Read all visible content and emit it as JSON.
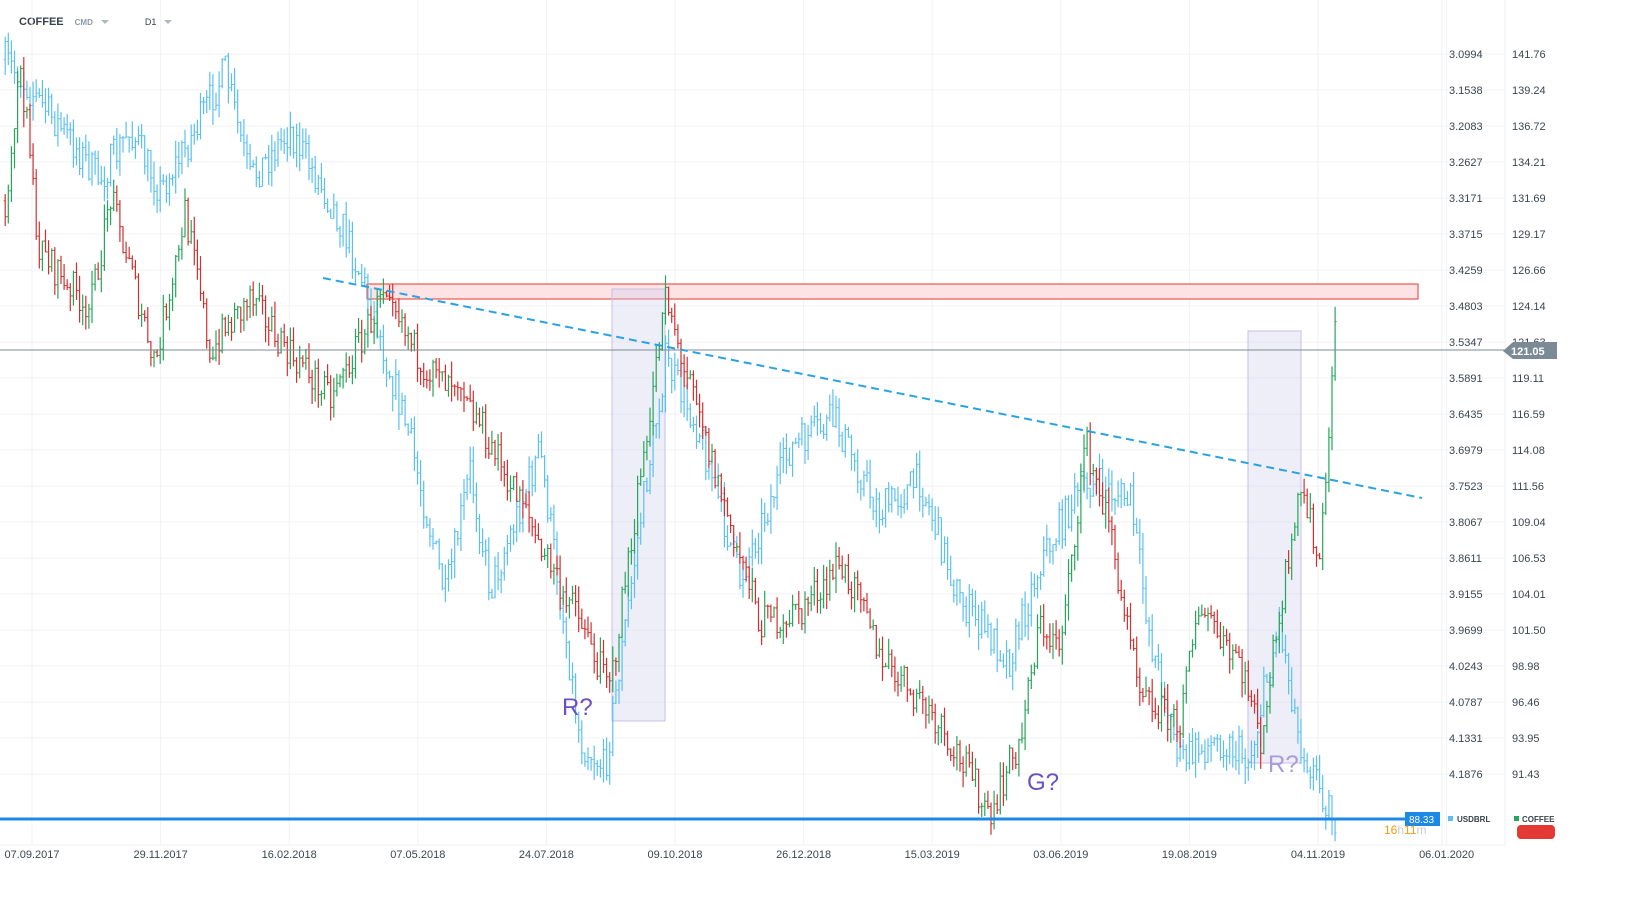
{
  "header": {
    "symbol": "COFFEE",
    "market": "CMD",
    "timeframe": "D1"
  },
  "chart_data": {
    "type": "ohlc",
    "x_axis": {
      "unit": "days since 07.09.2017",
      "tick_labels": [
        "07.09.2017",
        "29.11.2017",
        "16.02.2018",
        "07.05.2018",
        "24.07.2018",
        "09.10.2018",
        "26.12.2018",
        "15.03.2019",
        "03.06.2019",
        "19.08.2019",
        "04.11.2019",
        "06.01.2020"
      ]
    },
    "y_axis_left": {
      "series": "USDBRL",
      "inverted": true,
      "tick_labels": [
        "3.0994",
        "3.1538",
        "3.2083",
        "3.2627",
        "3.3171",
        "3.3715",
        "3.4259",
        "3.4803",
        "3.5347",
        "3.5891",
        "3.6435",
        "3.6979",
        "3.7523",
        "3.8067",
        "3.8611",
        "3.9155",
        "3.9699",
        "4.0243",
        "4.0787",
        "4.1331",
        "4.1876"
      ]
    },
    "y_axis_right": {
      "series": "COFFEE",
      "tick_labels": [
        "141.76",
        "139.24",
        "136.72",
        "134.21",
        "131.69",
        "129.17",
        "126.66",
        "124.14",
        "121.63",
        "119.11",
        "116.59",
        "114.08",
        "111.56",
        "109.04",
        "106.53",
        "104.01",
        "101.50",
        "98.98",
        "96.46",
        "93.95",
        "91.43"
      ]
    },
    "series": [
      {
        "name": "COFFEE",
        "color": "#26a65b",
        "down_color": "#d32f2f",
        "keypoints": [
          [
            -16,
            131.5
          ],
          [
            -6,
            141
          ],
          [
            6,
            128
          ],
          [
            39,
            124
          ],
          [
            52,
            131.7
          ],
          [
            81,
            120.3
          ],
          [
            100,
            130.8
          ],
          [
            116,
            121
          ],
          [
            142,
            124.5
          ],
          [
            194,
            117.5
          ],
          [
            226,
            124.5
          ],
          [
            258,
            119.6
          ],
          [
            290,
            116
          ],
          [
            316,
            110.5
          ],
          [
            355,
            102
          ],
          [
            374,
            97.3
          ],
          [
            410,
            124.5
          ],
          [
            432,
            116
          ],
          [
            471,
            102
          ],
          [
            497,
            102.8
          ],
          [
            523,
            106.3
          ],
          [
            548,
            100
          ],
          [
            587,
            95.1
          ],
          [
            619,
            88.8
          ],
          [
            639,
            93.8
          ],
          [
            652,
            102
          ],
          [
            665,
            100
          ],
          [
            681,
            114.7
          ],
          [
            697,
            108.4
          ],
          [
            716,
            96.5
          ],
          [
            742,
            95.1
          ],
          [
            755,
            103.5
          ],
          [
            781,
            99.3
          ],
          [
            794,
            93.8
          ],
          [
            819,
            112
          ],
          [
            832,
            106.3
          ],
          [
            842,
            122.4
          ]
        ]
      },
      {
        "name": "USDBRL",
        "color": "#5bc0f0",
        "keypoints": [
          [
            -16,
            3.108
          ],
          [
            0,
            3.154
          ],
          [
            26,
            3.229
          ],
          [
            45,
            3.29
          ],
          [
            65,
            3.214
          ],
          [
            84,
            3.305
          ],
          [
            103,
            3.23
          ],
          [
            126,
            3.124
          ],
          [
            142,
            3.29
          ],
          [
            168,
            3.214
          ],
          [
            200,
            3.35
          ],
          [
            219,
            3.47
          ],
          [
            245,
            3.68
          ],
          [
            268,
            3.92
          ],
          [
            284,
            3.728
          ],
          [
            297,
            3.91
          ],
          [
            329,
            3.698
          ],
          [
            355,
            4.136
          ],
          [
            371,
            4.18
          ],
          [
            394,
            3.8
          ],
          [
            410,
            3.562
          ],
          [
            432,
            3.668
          ],
          [
            458,
            3.894
          ],
          [
            490,
            3.698
          ],
          [
            519,
            3.652
          ],
          [
            548,
            3.79
          ],
          [
            574,
            3.743
          ],
          [
            600,
            3.925
          ],
          [
            632,
            4.015
          ],
          [
            652,
            3.865
          ],
          [
            681,
            3.743
          ],
          [
            710,
            3.774
          ],
          [
            723,
            3.986
          ],
          [
            742,
            4.166
          ],
          [
            768,
            4.136
          ],
          [
            787,
            4.166
          ],
          [
            806,
            3.955
          ],
          [
            819,
            4.136
          ],
          [
            842,
            4.257
          ]
        ]
      }
    ],
    "annotations": {
      "resistance_zone": [
        123.9,
        126.2
      ],
      "trendline": "dashed descending",
      "support_level": 88.33,
      "labels": [
        "R?",
        "G?",
        "R?"
      ]
    },
    "last_price_label": "121.05",
    "current_level_label": "88.33",
    "countdown": {
      "hours": "16",
      "h": "h",
      "mins": "11",
      "m": "m"
    },
    "legend": [
      {
        "name": "USDBRL",
        "color": "#5bc0f0"
      },
      {
        "name": "COFFEE",
        "color": "#26a65b"
      }
    ]
  }
}
